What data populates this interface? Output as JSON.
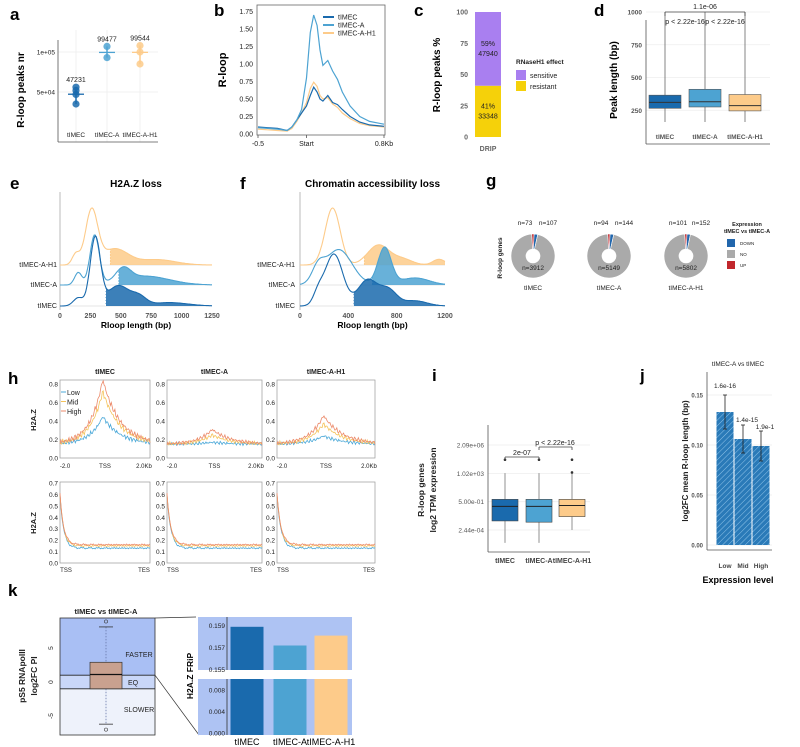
{
  "figure": {
    "panel_labels": [
      "a",
      "b",
      "c",
      "d",
      "e",
      "f",
      "g",
      "h",
      "i",
      "j",
      "k"
    ]
  },
  "colors": {
    "tIMEC": "#1a6aad",
    "tIMEC-A": "#4da3d2",
    "tIMEC-A-H1": "#fdcb8a",
    "sensitive": "#a97ff0",
    "resistant": "#f5d10a",
    "DOWN": "#2166ac",
    "NO": "#aaaaaa",
    "UP": "#c1272d",
    "Low": "#4aa8d8",
    "Mid": "#f5c35b",
    "High": "#ec8a6a",
    "faster": "#a9bff4",
    "eq": "#c9d7f8",
    "slower": "#eef2fb",
    "box_k": "#c9a18f",
    "frip_bg": "#aec3f3"
  },
  "samples": [
    "tIMEC",
    "tIMEC-A",
    "tIMEC-A-H1"
  ],
  "chart_data": [
    {
      "id": "a",
      "type": "scatter",
      "ylabel": "R-loop peaks nr",
      "yticks": [
        {
          "v": 50000,
          "label": "5e+04"
        },
        {
          "v": 100000,
          "label": "1e+05"
        }
      ],
      "categories": [
        "tIMEC",
        "tIMEC-A",
        "tIMEC-A-H1"
      ],
      "means": [
        47231,
        99477,
        99544
      ],
      "mean_labels": [
        "47231",
        "99477",
        "99544"
      ],
      "replicates": [
        [
          56000,
          52000,
          47000,
          35000
        ],
        [
          107000,
          93000
        ],
        [
          108000,
          100000,
          85000
        ]
      ],
      "ylim": [
        -10000,
        115000
      ],
      "grid": true
    },
    {
      "id": "b",
      "type": "line",
      "ylabel": "R-loop",
      "xticks": [
        {
          "v": -0.5,
          "label": "-0.5"
        },
        {
          "v": 0,
          "label": "Start"
        },
        {
          "v": 0.8,
          "label": "0.8Kb"
        }
      ],
      "yticks": [
        {
          "v": 0,
          "label": "0.00"
        },
        {
          "v": 0.25,
          "label": "0.25"
        },
        {
          "v": 0.5,
          "label": "0.50"
        },
        {
          "v": 0.75,
          "label": "0.75"
        },
        {
          "v": 1.0,
          "label": "1.00"
        },
        {
          "v": 1.25,
          "label": "1.25"
        },
        {
          "v": 1.5,
          "label": "1.50"
        },
        {
          "v": 1.75,
          "label": "1.75"
        }
      ],
      "ylim": [
        0,
        1.8
      ],
      "xlim": [
        -0.5,
        0.8
      ],
      "legend": "top-right",
      "x": [
        -0.5,
        -0.4,
        -0.3,
        -0.2,
        -0.15,
        -0.1,
        -0.05,
        0,
        0.04,
        0.075,
        0.11,
        0.14,
        0.17,
        0.22,
        0.27,
        0.32,
        0.37,
        0.45,
        0.55,
        0.65,
        0.8
      ],
      "series": [
        {
          "name": "tIMEC",
          "values": [
            0.1,
            0.09,
            0.08,
            0.05,
            0.1,
            0.2,
            0.3,
            0.4,
            0.55,
            0.67,
            0.6,
            0.5,
            0.47,
            0.55,
            0.45,
            0.42,
            0.35,
            0.25,
            0.17,
            0.13,
            0.11
          ]
        },
        {
          "name": "tIMEC-A",
          "values": [
            0.09,
            0.08,
            0.07,
            0.05,
            0.1,
            0.2,
            0.35,
            0.8,
            1.45,
            1.7,
            1.55,
            1.2,
            0.98,
            1.05,
            0.9,
            0.78,
            0.6,
            0.4,
            0.25,
            0.18,
            0.14
          ]
        },
        {
          "name": "tIMEC-A-H1",
          "values": [
            0.07,
            0.06,
            0.05,
            0.04,
            0.08,
            0.18,
            0.3,
            0.45,
            0.65,
            0.74,
            0.68,
            0.55,
            0.5,
            0.52,
            0.43,
            0.38,
            0.3,
            0.22,
            0.15,
            0.12,
            0.1
          ]
        }
      ]
    },
    {
      "id": "c",
      "type": "bar",
      "stacked": true,
      "ylabel": "R-loop peaks %",
      "categories": [
        "DRIP"
      ],
      "yticks": [
        {
          "v": 0,
          "label": "0"
        },
        {
          "v": 25,
          "label": "25"
        },
        {
          "v": 50,
          "label": "50"
        },
        {
          "v": 75,
          "label": "75"
        },
        {
          "v": 100,
          "label": "100"
        }
      ],
      "legend_title": "RNaseH1 effect",
      "series": [
        {
          "name": "resistant",
          "percent": 41,
          "percent_label": "41%",
          "count": "33348"
        },
        {
          "name": "sensitive",
          "percent": 59,
          "percent_label": "59%",
          "count": "47940"
        }
      ],
      "ylim": [
        0,
        100
      ]
    },
    {
      "id": "d",
      "type": "box",
      "ylabel": "Peak length (bp)",
      "categories": [
        "tIMEC",
        "tIMEC-A",
        "tIMEC-A-H1"
      ],
      "yticks": [
        {
          "v": 250,
          "label": "250"
        },
        {
          "v": 500,
          "label": "500"
        },
        {
          "v": 750,
          "label": "750"
        },
        {
          "v": 1000,
          "label": "1000"
        }
      ],
      "boxes": [
        {
          "q1": 265,
          "median": 310,
          "q3": 365,
          "lo": 160,
          "hi": 1000
        },
        {
          "q1": 275,
          "median": 315,
          "q3": 410,
          "lo": 160,
          "hi": 1000
        },
        {
          "q1": 245,
          "median": 285,
          "q3": 370,
          "lo": 160,
          "hi": 1000
        }
      ],
      "annotations": {
        "outer": "1.1e-06",
        "left": "p < 2.22e-16",
        "right": "p < 2.22e-16"
      },
      "ylim": [
        0,
        1000
      ]
    },
    {
      "id": "e",
      "type": "ridge",
      "title": "H2A.Z loss",
      "xlabel": "Rloop length (bp)",
      "xticks": [
        {
          "v": 0,
          "label": "0"
        },
        {
          "v": 250,
          "label": "250"
        },
        {
          "v": 500,
          "label": "500"
        },
        {
          "v": 750,
          "label": "750"
        },
        {
          "v": 1000,
          "label": "1000"
        },
        {
          "v": 1250,
          "label": "1250"
        }
      ],
      "rows": [
        "tIMEC",
        "tIMEC-A",
        "tIMEC-A-H1"
      ],
      "thresholds": [
        370,
        480,
        410
      ],
      "xlim": [
        0,
        1250
      ]
    },
    {
      "id": "f",
      "type": "ridge",
      "title": "Chromatin accessibility loss",
      "xlabel": "Rloop length (bp)",
      "xticks": [
        {
          "v": 0,
          "label": "0"
        },
        {
          "v": 400,
          "label": "400"
        },
        {
          "v": 800,
          "label": "800"
        },
        {
          "v": 1200,
          "label": "1200"
        }
      ],
      "rows": [
        "tIMEC",
        "tIMEC-A",
        "tIMEC-A-H1"
      ],
      "thresholds": [
        440,
        600,
        530
      ],
      "xlim": [
        0,
        1200
      ]
    },
    {
      "id": "g",
      "type": "pie",
      "ylabel": "R-loop genes",
      "legend_title": [
        "Expression",
        "tIMEC vs tIMEC-A"
      ],
      "legend": [
        "DOWN",
        "NO",
        "UP"
      ],
      "pies": [
        {
          "name": "tIMEC",
          "UP": 73,
          "DOWN": 107,
          "NO": 3912,
          "labels": {
            "UP": "n=73",
            "DOWN": "n=107",
            "NO": "n=3912"
          }
        },
        {
          "name": "tIMEC-A",
          "UP": 94,
          "DOWN": 144,
          "NO": 5149,
          "labels": {
            "UP": "n=94",
            "DOWN": "n=144",
            "NO": "n=5149"
          }
        },
        {
          "name": "tIMEC-A-H1",
          "UP": 101,
          "DOWN": 152,
          "NO": 5802,
          "labels": {
            "UP": "n=101",
            "DOWN": "n=152",
            "NO": "n=5802"
          }
        }
      ]
    },
    {
      "id": "h",
      "type": "line",
      "ylabel": "H2A.Z",
      "legend": [
        "Low",
        "Mid",
        "High"
      ],
      "panels": [
        "tIMEC",
        "tIMEC-A",
        "tIMEC-A-H1"
      ],
      "top_xticks": [
        "-2.0",
        "TSS",
        "2.0Kb"
      ],
      "bottom_xticks": [
        "TSS",
        "TES"
      ],
      "top_yticks": [
        "0.0",
        "0.2",
        "0.4",
        "0.6",
        "0.8"
      ],
      "bottom_yticks": [
        "0.0",
        "0.1",
        "0.2",
        "0.3",
        "0.4",
        "0.5",
        "0.6",
        "0.7"
      ],
      "top_peaks": [
        {
          "Low": 0.45,
          "Mid": 0.72,
          "High": 0.85
        },
        {
          "Low": 0.17,
          "Mid": 0.25,
          "High": 0.31
        },
        {
          "Low": 0.24,
          "Mid": 0.37,
          "High": 0.46
        }
      ],
      "baseline": 0.15,
      "bottom_start": 0.6,
      "bottom_plateau": {
        "Low": 0.13,
        "Mid": 0.15,
        "High": 0.16
      }
    },
    {
      "id": "i",
      "type": "box",
      "ylabel": [
        "R-loop genes",
        "log2 TPM expression"
      ],
      "log2": true,
      "categories": [
        "tIMEC",
        "tIMEC-A",
        "tIMEC-A-H1"
      ],
      "yticks": [
        {
          "v": 0.000244,
          "label": "2.44e-04"
        },
        {
          "v": 0.5,
          "label": "5.00e-01"
        },
        {
          "v": 1020,
          "label": "1.02e+03"
        },
        {
          "v": 2090000,
          "label": "2.09e+06"
        }
      ],
      "boxes": [
        {
          "q1": 0.0028,
          "median": 0.14,
          "q3": 0.93,
          "lo": 7.6e-06,
          "hi": 1100,
          "outliers": [
            40000
          ]
        },
        {
          "q1": 0.002,
          "median": 0.14,
          "q3": 0.93,
          "lo": 7.6e-06,
          "hi": 1100,
          "outliers": [
            40000
          ]
        },
        {
          "q1": 0.009,
          "median": 0.18,
          "q3": 0.93,
          "lo": 0.000244,
          "hi": 1000,
          "outliers": [
            40000,
            1300
          ]
        }
      ],
      "annotations": {
        "left": "2e-07",
        "right": "p < 2.22e-16"
      }
    },
    {
      "id": "j",
      "type": "bar",
      "title": "tIMEC-A vs tIMEC",
      "ylabel": "log2FC mean R-loop length (bp)",
      "xlabel": "Expression level",
      "categories": [
        "Low",
        "Mid",
        "High"
      ],
      "values": [
        0.133,
        0.106,
        0.099
      ],
      "errors": [
        0.017,
        0.014,
        0.015
      ],
      "labels": [
        "1.6e-16",
        "1.4e-15",
        "1.9e-1"
      ],
      "yticks": [
        {
          "v": 0,
          "label": "0.00"
        },
        {
          "v": 0.05,
          "label": "0.05"
        },
        {
          "v": 0.1,
          "label": "0.10"
        },
        {
          "v": 0.15,
          "label": "0.15"
        }
      ],
      "ylim": [
        0,
        0.17
      ],
      "color": "#2a7ab8"
    },
    {
      "id": "k_left",
      "type": "box",
      "title": "tIMEC vs tIMEC-A",
      "ylabel": [
        "pS5 RNApolII",
        "log2FC PI"
      ],
      "yticks": [
        {
          "v": -5,
          "label": "-5"
        },
        {
          "v": 0,
          "label": "0"
        },
        {
          "v": 5,
          "label": "5"
        }
      ],
      "regions": [
        {
          "label": "FASTER",
          "from": 1,
          "to": 10
        },
        {
          "label": "EQ",
          "from": -1,
          "to": 1
        },
        {
          "label": "SLOWER",
          "from": -10,
          "to": -1
        }
      ],
      "box": {
        "q1": -1,
        "median": 1.1,
        "q3": 2.9,
        "lo": -6.2,
        "hi": 8.1,
        "outliers": [
          -7,
          8.9
        ]
      },
      "ylim": [
        -7.7,
        9.8
      ]
    },
    {
      "id": "k_right",
      "type": "bar",
      "ylabel": "H2A.Z FRiP",
      "broken_axis": true,
      "categories": [
        "tIMEC",
        "tIMEC-A",
        "tIMEC-A-H1"
      ],
      "values": [
        0.1589,
        0.1572,
        0.1581
      ],
      "yticks_upper": [
        {
          "v": 0.155,
          "label": "0.155"
        },
        {
          "v": 0.157,
          "label": "0.157"
        },
        {
          "v": 0.159,
          "label": "0.159"
        }
      ],
      "yticks_lower": [
        {
          "v": 0,
          "label": "0.000"
        },
        {
          "v": 0.004,
          "label": "0.004"
        },
        {
          "v": 0.008,
          "label": "0.008"
        }
      ]
    }
  ]
}
